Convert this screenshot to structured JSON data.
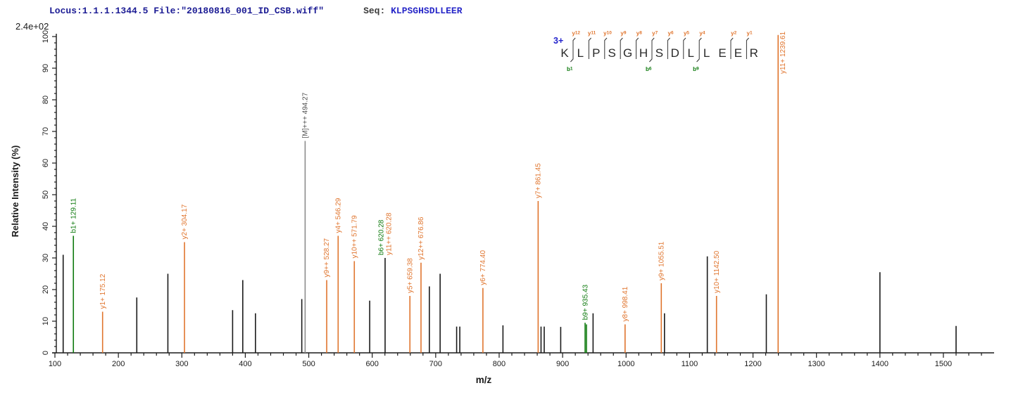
{
  "header": {
    "locus_text": "Locus:1.1.1.1344.5 File:\"20180816_001_ID_CSB.wiff\"",
    "locus_color": "#1b1b94",
    "seq_prefix": "Seq: ",
    "seq_prefix_color": "#3a3a3a",
    "seq_value": "KLPSGHSDLLEER",
    "seq_value_color": "#2727c8"
  },
  "colors": {
    "y_ion": "#e0752e",
    "b_ion": "#0e7a0e",
    "precursor_stick": "#8c8c8c",
    "precursor_label": "#4d4d4d",
    "unassigned": "#1a1a1a",
    "axis": "#1a1a1a",
    "marker": "#333333",
    "residue": "#2a2a2a",
    "charge": "#2323cc"
  },
  "sequence_panel": {
    "charge_label": "3+",
    "residues": [
      "K",
      "L",
      "P",
      "S",
      "G",
      "H",
      "S",
      "D",
      "L",
      "L",
      "E",
      "E",
      "R"
    ],
    "y_ions": [
      {
        "label": "y",
        "num": "12",
        "after": 0
      },
      {
        "label": "y",
        "num": "11",
        "after": 1
      },
      {
        "label": "y",
        "num": "10",
        "after": 2
      },
      {
        "label": "y",
        "num": "9",
        "after": 3
      },
      {
        "label": "y",
        "num": "8",
        "after": 4
      },
      {
        "label": "y",
        "num": "7",
        "after": 5
      },
      {
        "label": "y",
        "num": "6",
        "after": 6
      },
      {
        "label": "y",
        "num": "5",
        "after": 7
      },
      {
        "label": "y",
        "num": "4",
        "after": 8
      },
      {
        "label": "y",
        "num": "2",
        "after": 10
      },
      {
        "label": "y",
        "num": "1",
        "after": 11
      }
    ],
    "b_ions": [
      {
        "label": "b",
        "num": "1",
        "after": 0
      },
      {
        "label": "b",
        "num": "6",
        "after": 5
      },
      {
        "label": "b",
        "num": "9",
        "after": 8
      }
    ]
  },
  "chart_data": {
    "type": "bar",
    "subtype": "mass-spectrum",
    "title": "",
    "xlabel": "m/z",
    "ylabel": "Relative  Intensity (%)",
    "y_scale_note": "2.4e+02",
    "xlim": [
      100,
      1560
    ],
    "ylim": [
      0,
      100
    ],
    "x_major_tick_start": 100,
    "x_major_tick_end": 1500,
    "x_major_tick_step": 100,
    "x_minor_tick_step": 20,
    "y_major_tick_step": 10,
    "y_minor_tick_step": 2,
    "grid": "off",
    "legend": "none",
    "peaks": [
      {
        "mz": 113.0,
        "intensity": 31.0,
        "type": "unassigned"
      },
      {
        "mz": 129.11,
        "intensity": 37.0,
        "type": "b",
        "label": "b1+ 129.11"
      },
      {
        "mz": 175.12,
        "intensity": 13.0,
        "type": "y",
        "label": "y1+ 175.12"
      },
      {
        "mz": 229.0,
        "intensity": 17.5,
        "type": "unassigned"
      },
      {
        "mz": 278.0,
        "intensity": 25.0,
        "type": "unassigned"
      },
      {
        "mz": 304.17,
        "intensity": 35.0,
        "type": "y",
        "label": "y2+ 304.17"
      },
      {
        "mz": 380.0,
        "intensity": 13.5,
        "type": "unassigned"
      },
      {
        "mz": 396.0,
        "intensity": 23.0,
        "type": "unassigned"
      },
      {
        "mz": 416.0,
        "intensity": 12.5,
        "type": "unassigned"
      },
      {
        "mz": 489.0,
        "intensity": 17.0,
        "type": "unassigned"
      },
      {
        "mz": 494.27,
        "intensity": 67.0,
        "type": "precursor",
        "label": "[M]+++ 494.27"
      },
      {
        "mz": 528.27,
        "intensity": 23.0,
        "type": "y",
        "label": "y9++ 528.27"
      },
      {
        "mz": 546.29,
        "intensity": 37.0,
        "type": "y",
        "label": "y4+ 546.29"
      },
      {
        "mz": 571.79,
        "intensity": 29.0,
        "type": "y",
        "label": "y10++ 571.79"
      },
      {
        "mz": 596.0,
        "intensity": 16.5,
        "type": "unassigned"
      },
      {
        "mz": 620.28,
        "intensity": 30.0,
        "type": "unassigned",
        "labels": [
          {
            "text": "b6+ 620.28",
            "type": "b"
          },
          {
            "text": "y11++ 620.28",
            "type": "y"
          }
        ]
      },
      {
        "mz": 659.38,
        "intensity": 18.0,
        "type": "y",
        "label": "y5+ 659.38"
      },
      {
        "mz": 676.86,
        "intensity": 28.5,
        "type": "y",
        "label": "y12++ 676.86"
      },
      {
        "mz": 690.0,
        "intensity": 21.0,
        "type": "unassigned"
      },
      {
        "mz": 707.0,
        "intensity": 25.0,
        "type": "unassigned"
      },
      {
        "mz": 733.0,
        "intensity": 8.3,
        "type": "unassigned"
      },
      {
        "mz": 738.0,
        "intensity": 8.3,
        "type": "unassigned"
      },
      {
        "mz": 774.4,
        "intensity": 20.5,
        "type": "y",
        "label": "y6+ 774.40"
      },
      {
        "mz": 806.0,
        "intensity": 8.7,
        "type": "unassigned"
      },
      {
        "mz": 861.45,
        "intensity": 48.0,
        "type": "y",
        "label": "y7+ 861.45"
      },
      {
        "mz": 866.0,
        "intensity": 8.3,
        "type": "unassigned"
      },
      {
        "mz": 871.0,
        "intensity": 8.3,
        "type": "unassigned"
      },
      {
        "mz": 897.0,
        "intensity": 8.2,
        "type": "unassigned"
      },
      {
        "mz": 935.43,
        "intensity": 9.5,
        "type": "b",
        "label": "b9+ 935.43"
      },
      {
        "mz": 937.6,
        "intensity": 9.0,
        "type": "b"
      },
      {
        "mz": 948.0,
        "intensity": 12.5,
        "type": "unassigned"
      },
      {
        "mz": 998.41,
        "intensity": 9.0,
        "type": "y",
        "label": "y8+ 998.41"
      },
      {
        "mz": 1055.51,
        "intensity": 22.0,
        "type": "y",
        "label": "y9+ 1055.51"
      },
      {
        "mz": 1060.5,
        "intensity": 12.5,
        "type": "unassigned"
      },
      {
        "mz": 1128.0,
        "intensity": 30.5,
        "type": "unassigned"
      },
      {
        "mz": 1142.5,
        "intensity": 18.0,
        "type": "y",
        "label": "y10+ 1142.50"
      },
      {
        "mz": 1221.0,
        "intensity": 18.5,
        "type": "unassigned"
      },
      {
        "mz": 1239.61,
        "intensity": 100.5,
        "type": "y",
        "label": "y11+ 1239.61"
      },
      {
        "mz": 1400.0,
        "intensity": 25.5,
        "type": "unassigned"
      },
      {
        "mz": 1520.0,
        "intensity": 8.5,
        "type": "unassigned"
      }
    ]
  }
}
